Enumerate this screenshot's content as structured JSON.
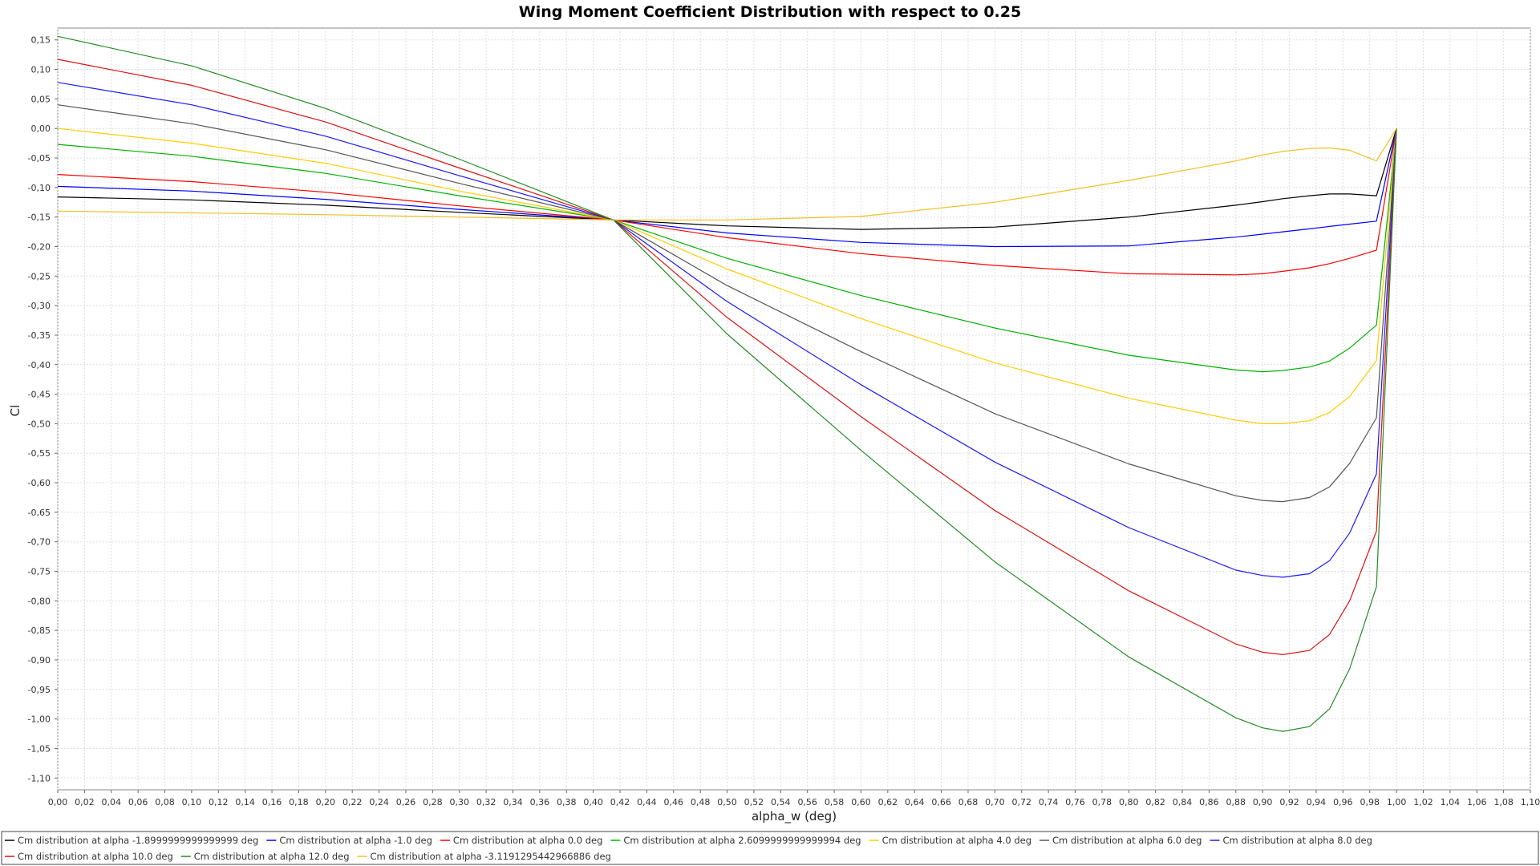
{
  "chart_data": {
    "type": "line",
    "title": "Wing Moment Coefficient Distribution with respect to 0.25",
    "xlabel": "alpha_w (deg)",
    "ylabel": "Cl",
    "xlim": [
      0.0,
      1.1
    ],
    "ylim": [
      -1.12,
      0.17
    ],
    "grid": true,
    "legend_position": "bottom",
    "decimal_separator": ",",
    "x_ticks": [
      0.0,
      0.02,
      0.04,
      0.06,
      0.08,
      0.1,
      0.12,
      0.14,
      0.16,
      0.18,
      0.2,
      0.22,
      0.24,
      0.26,
      0.28,
      0.3,
      0.32,
      0.34,
      0.36,
      0.38,
      0.4,
      0.42,
      0.44,
      0.46,
      0.48,
      0.5,
      0.52,
      0.54,
      0.56,
      0.58,
      0.6,
      0.62,
      0.64,
      0.66,
      0.68,
      0.7,
      0.72,
      0.74,
      0.76,
      0.78,
      0.8,
      0.82,
      0.84,
      0.86,
      0.88,
      0.9,
      0.92,
      0.94,
      0.96,
      0.98,
      1.0,
      1.02,
      1.04,
      1.06,
      1.08,
      1.1
    ],
    "y_ticks": [
      0.15,
      0.1,
      0.05,
      0.0,
      -0.05,
      -0.1,
      -0.15,
      -0.2,
      -0.25,
      -0.3,
      -0.35,
      -0.4,
      -0.45,
      -0.5,
      -0.55,
      -0.6,
      -0.65,
      -0.7,
      -0.75,
      -0.8,
      -0.85,
      -0.9,
      -0.95,
      -1.0,
      -1.05,
      -1.1
    ],
    "x": [
      0.0,
      0.1,
      0.2,
      0.3,
      0.415,
      0.5,
      0.6,
      0.7,
      0.8,
      0.88,
      0.9,
      0.915,
      0.935,
      0.95,
      0.965,
      0.985,
      1.0
    ],
    "series": [
      {
        "name": "Cm distribution at alpha -1.8999999999999999 deg",
        "color": "#000000",
        "values": [
          -0.116,
          -0.121,
          -0.13,
          -0.142,
          -0.155,
          -0.165,
          -0.171,
          -0.167,
          -0.15,
          -0.13,
          -0.124,
          -0.119,
          -0.114,
          -0.111,
          -0.111,
          -0.114,
          0.0
        ]
      },
      {
        "name": "Cm distribution at alpha -1.0 deg",
        "color": "#0000ff",
        "values": [
          -0.098,
          -0.106,
          -0.12,
          -0.137,
          -0.155,
          -0.177,
          -0.193,
          -0.2,
          -0.199,
          -0.184,
          -0.179,
          -0.175,
          -0.17,
          -0.166,
          -0.162,
          -0.157,
          0.0
        ]
      },
      {
        "name": "Cm distribution at alpha 0.0 deg",
        "color": "#ff0000",
        "values": [
          -0.078,
          -0.09,
          -0.108,
          -0.131,
          -0.155,
          -0.185,
          -0.212,
          -0.232,
          -0.246,
          -0.248,
          -0.246,
          -0.242,
          -0.236,
          -0.229,
          -0.22,
          -0.206,
          0.0
        ]
      },
      {
        "name": "Cm distribution at alpha 2.6099999999999994 deg",
        "color": "#00b000",
        "values": [
          -0.027,
          -0.047,
          -0.076,
          -0.114,
          -0.155,
          -0.22,
          -0.283,
          -0.338,
          -0.384,
          -0.409,
          -0.412,
          -0.41,
          -0.404,
          -0.394,
          -0.372,
          -0.333,
          0.0
        ]
      },
      {
        "name": "Cm distribution at alpha 4.0 deg",
        "color": "#ffcc00",
        "values": [
          0.0,
          -0.025,
          -0.059,
          -0.106,
          -0.155,
          -0.238,
          -0.322,
          -0.397,
          -0.457,
          -0.494,
          -0.5,
          -0.5,
          -0.495,
          -0.481,
          -0.454,
          -0.393,
          0.0
        ]
      },
      {
        "name": "Cm distribution at alpha 6.0 deg",
        "color": "#555555",
        "values": [
          0.04,
          0.008,
          -0.036,
          -0.093,
          -0.155,
          -0.266,
          -0.378,
          -0.483,
          -0.568,
          -0.622,
          -0.63,
          -0.632,
          -0.625,
          -0.607,
          -0.567,
          -0.49,
          0.0
        ]
      },
      {
        "name": "Cm distribution at alpha 8.0 deg",
        "color": "#1a1aff",
        "values": [
          0.078,
          0.04,
          -0.013,
          -0.08,
          -0.155,
          -0.293,
          -0.434,
          -0.565,
          -0.676,
          -0.748,
          -0.757,
          -0.76,
          -0.754,
          -0.732,
          -0.685,
          -0.585,
          0.0
        ]
      },
      {
        "name": "Cm distribution at alpha 10.0 deg",
        "color": "#dd1111",
        "values": [
          0.117,
          0.073,
          0.011,
          -0.067,
          -0.155,
          -0.32,
          -0.488,
          -0.647,
          -0.783,
          -0.873,
          -0.887,
          -0.891,
          -0.884,
          -0.857,
          -0.8,
          -0.682,
          0.0
        ]
      },
      {
        "name": "Cm distribution at alpha 12.0 deg",
        "color": "#228b22",
        "values": [
          0.156,
          0.106,
          0.034,
          -0.052,
          -0.155,
          -0.348,
          -0.545,
          -0.734,
          -0.895,
          -0.998,
          -1.015,
          -1.021,
          -1.013,
          -0.983,
          -0.915,
          -0.776,
          0.0
        ]
      },
      {
        "name": "Cm distribution at alpha -3.1191295442966886 deg",
        "color": "#f0c020",
        "values": [
          -0.14,
          -0.143,
          -0.146,
          -0.15,
          -0.155,
          -0.155,
          -0.149,
          -0.125,
          -0.088,
          -0.055,
          -0.045,
          -0.039,
          -0.034,
          -0.033,
          -0.037,
          -0.055,
          0.0
        ]
      }
    ]
  }
}
